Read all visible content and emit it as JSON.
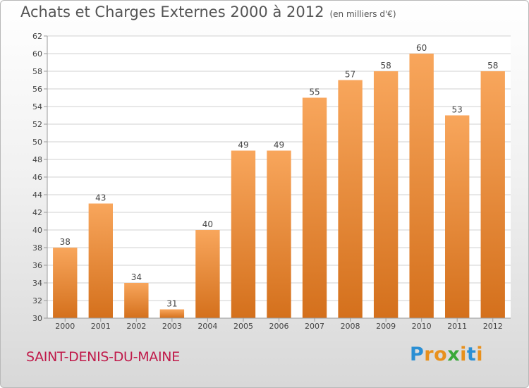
{
  "title": "Achats et Charges Externes 2000 à 2012",
  "unit_note": "(en milliers d'€)",
  "town_name": "SAINT-DENIS-DU-MAINE",
  "brand": {
    "letters": [
      "P",
      "r",
      "o",
      "x",
      "i",
      "t",
      "i"
    ],
    "colors": [
      "#2a8fd4",
      "#e8901c",
      "#e8901c",
      "#3aa83a",
      "#e8901c",
      "#2a8fd4",
      "#e8901c"
    ]
  },
  "colors": {
    "bar_top": "#f8a65c",
    "bar_bottom": "#d4701c",
    "grid": "#d0d0d0",
    "town": "#c01a4a"
  },
  "chart_data": {
    "type": "bar",
    "title": "Achats et Charges Externes 2000 à 2012",
    "categories": [
      "2000",
      "2001",
      "2002",
      "2003",
      "2004",
      "2005",
      "2006",
      "2007",
      "2008",
      "2009",
      "2010",
      "2011",
      "2012"
    ],
    "values": [
      38,
      43,
      34,
      31,
      40,
      49,
      49,
      55,
      57,
      58,
      60,
      53,
      58
    ],
    "ylim": [
      30,
      62
    ],
    "yticks": [
      30,
      32,
      34,
      36,
      38,
      40,
      42,
      44,
      46,
      48,
      50,
      52,
      54,
      56,
      58,
      60,
      62
    ],
    "grid": true
  }
}
